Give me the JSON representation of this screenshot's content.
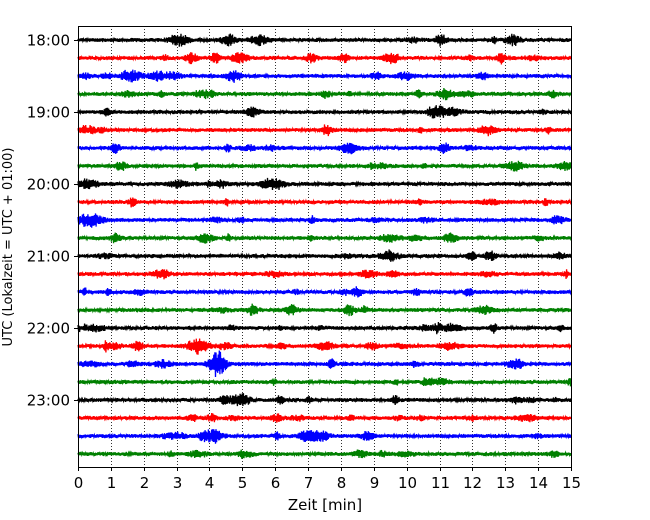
{
  "chart_data": {
    "type": "line",
    "xlabel": "Zeit  [min]",
    "ylabel": "UTC (Lokalzeit = UTC + 01:00)",
    "xlim": [
      0,
      15
    ],
    "xticks": [
      0,
      1,
      2,
      3,
      4,
      5,
      6,
      7,
      8,
      9,
      10,
      11,
      12,
      13,
      14,
      15
    ],
    "y_tick_labels": [
      "18:00",
      "19:00",
      "20:00",
      "21:00",
      "22:00",
      "23:00"
    ],
    "grid": "vertical dotted at every minute",
    "trace_interval_minutes": 15,
    "trace_colors_cycle": [
      "#000000",
      "#ff0000",
      "#0000ff",
      "#008000"
    ],
    "traces": [
      {
        "start": "18:00",
        "color": "#000000"
      },
      {
        "start": "18:15",
        "color": "#ff0000"
      },
      {
        "start": "18:30",
        "color": "#0000ff"
      },
      {
        "start": "18:45",
        "color": "#008000"
      },
      {
        "start": "19:00",
        "color": "#000000"
      },
      {
        "start": "19:15",
        "color": "#ff0000"
      },
      {
        "start": "19:30",
        "color": "#0000ff"
      },
      {
        "start": "19:45",
        "color": "#008000"
      },
      {
        "start": "20:00",
        "color": "#000000"
      },
      {
        "start": "20:15",
        "color": "#ff0000"
      },
      {
        "start": "20:30",
        "color": "#0000ff"
      },
      {
        "start": "20:45",
        "color": "#008000"
      },
      {
        "start": "21:00",
        "color": "#000000"
      },
      {
        "start": "21:15",
        "color": "#ff0000"
      },
      {
        "start": "21:30",
        "color": "#0000ff"
      },
      {
        "start": "21:45",
        "color": "#008000"
      },
      {
        "start": "22:00",
        "color": "#000000"
      },
      {
        "start": "22:15",
        "color": "#ff0000"
      },
      {
        "start": "22:30",
        "color": "#0000ff"
      },
      {
        "start": "22:45",
        "color": "#008000"
      },
      {
        "start": "23:00",
        "color": "#000000"
      },
      {
        "start": "23:15",
        "color": "#ff0000"
      },
      {
        "start": "23:30",
        "color": "#0000ff"
      },
      {
        "start": "23:45",
        "color": "#008000"
      }
    ]
  }
}
